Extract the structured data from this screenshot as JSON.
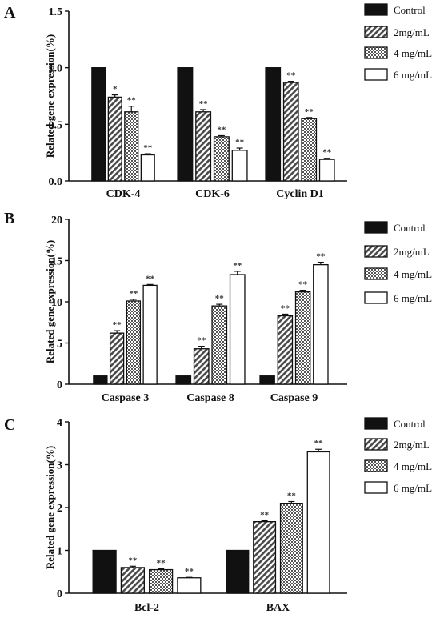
{
  "chart_data": [
    {
      "type": "bar",
      "panel": "A",
      "ylabel": "Related gene expression(%)",
      "ylim": [
        0,
        1.5
      ],
      "yticks": [
        "0.0",
        "0.5",
        "1.0",
        "1.5"
      ],
      "categories": [
        "CDK-4",
        "CDK-6",
        "Cyclin D1"
      ],
      "series": [
        {
          "name": "Control",
          "values": [
            1.0,
            1.0,
            1.0
          ],
          "errors": [
            0,
            0,
            0
          ],
          "sig": [
            "",
            "",
            ""
          ]
        },
        {
          "name": "2mg/mL",
          "values": [
            0.74,
            0.61,
            0.87
          ],
          "errors": [
            0.02,
            0.02,
            0.01
          ],
          "sig": [
            "*",
            "**",
            "**"
          ]
        },
        {
          "name": "4 mg/mL",
          "values": [
            0.61,
            0.39,
            0.55
          ],
          "errors": [
            0.05,
            0.01,
            0.01
          ],
          "sig": [
            "**",
            "**",
            "**"
          ]
        },
        {
          "name": "6 mg/mL",
          "values": [
            0.23,
            0.27,
            0.19
          ],
          "errors": [
            0.01,
            0.02,
            0.01
          ],
          "sig": [
            "**",
            "**",
            "**"
          ]
        }
      ],
      "legend": "right"
    },
    {
      "type": "bar",
      "panel": "B",
      "ylabel": "Related gene expression(%)",
      "ylim": [
        0,
        20
      ],
      "yticks": [
        "0",
        "5",
        "10",
        "15",
        "20"
      ],
      "categories": [
        "Caspase 3",
        "Caspase 8",
        "Caspase 9"
      ],
      "series": [
        {
          "name": "Control",
          "values": [
            1.0,
            1.0,
            1.0
          ],
          "errors": [
            0,
            0,
            0
          ],
          "sig": [
            "",
            "",
            ""
          ]
        },
        {
          "name": "2mg/mL",
          "values": [
            6.2,
            4.3,
            8.3
          ],
          "errors": [
            0.3,
            0.3,
            0.2
          ],
          "sig": [
            "**",
            "**",
            "**"
          ]
        },
        {
          "name": "4 mg/mL",
          "values": [
            10.1,
            9.5,
            11.2
          ],
          "errors": [
            0.2,
            0.2,
            0.2
          ],
          "sig": [
            "**",
            "**",
            "**"
          ]
        },
        {
          "name": "6 mg/mL",
          "values": [
            12.0,
            13.3,
            14.5
          ],
          "errors": [
            0.1,
            0.4,
            0.3
          ],
          "sig": [
            "**",
            "**",
            "**"
          ]
        }
      ],
      "legend": "right"
    },
    {
      "type": "bar",
      "panel": "C",
      "ylabel": "Related gene expression(%)",
      "ylim": [
        0,
        4
      ],
      "yticks": [
        "0",
        "1",
        "2",
        "3",
        "4"
      ],
      "categories": [
        "Bcl-2",
        "BAX"
      ],
      "series": [
        {
          "name": "Control",
          "values": [
            1.0,
            1.0
          ],
          "errors": [
            0,
            0
          ],
          "sig": [
            "",
            ""
          ]
        },
        {
          "name": "2mg/mL",
          "values": [
            0.6,
            1.67
          ],
          "errors": [
            0.03,
            0.02
          ],
          "sig": [
            "**",
            "**"
          ]
        },
        {
          "name": "4 mg/mL",
          "values": [
            0.55,
            2.1
          ],
          "errors": [
            0.02,
            0.04
          ],
          "sig": [
            "**",
            "**"
          ]
        },
        {
          "name": "6 mg/mL",
          "values": [
            0.36,
            3.3
          ],
          "errors": [
            0.01,
            0.06
          ],
          "sig": [
            "**",
            "**"
          ]
        }
      ],
      "legend": "right"
    }
  ]
}
